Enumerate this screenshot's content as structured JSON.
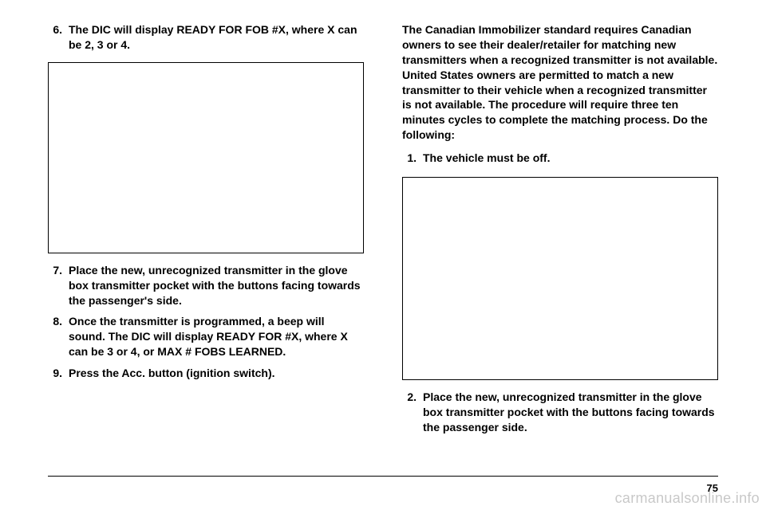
{
  "left": {
    "items": [
      {
        "num": "6.",
        "text": "The DIC will display READY FOR FOB #X, where X can be 2, 3 or 4."
      },
      {
        "num": "7.",
        "text": "Place the new, unrecognized transmitter in the glove box transmitter pocket with the buttons facing towards the passenger's side."
      },
      {
        "num": "8.",
        "text": "Once the transmitter is programmed, a beep will sound. The DIC will display READY FOR #X, where X can be 3 or 4, or MAX # FOBS LEARNED."
      },
      {
        "num": "9.",
        "text": "Press the Acc. button (ignition switch)."
      }
    ]
  },
  "right": {
    "intro": "The Canadian Immobilizer standard requires Canadian owners to see their dealer/retailer for matching new transmitters when a recognized transmitter is not available. United States owners are permitted to match a new transmitter to their vehicle when a recognized transmitter is not available. The procedure will require three ten minutes cycles to complete the matching process. Do the following:",
    "items": [
      {
        "num": "1.",
        "text": "The vehicle must be off."
      },
      {
        "num": "2.",
        "text": "Place the new, unrecognized transmitter in the glove box transmitter pocket with the buttons facing towards the passenger side."
      }
    ]
  },
  "page_number": "75",
  "watermark": "carmanualsonline.info"
}
